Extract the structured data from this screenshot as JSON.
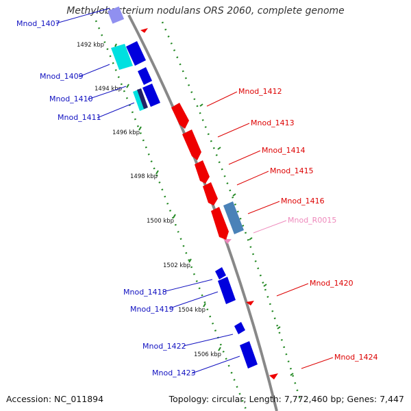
{
  "title": "Methylobacterium nodulans ORS 2060, complete genome",
  "footer": {
    "accession": "Accession: NC_011894",
    "stats": "Topology: circular; Length: 7,772,460 bp; Genes: 7,447"
  },
  "colors": {
    "minus_label": "#1010c0",
    "plus_label": "#dd0000",
    "rna_label": "#ee88bb",
    "axis": "#888888",
    "tick_mark": "#228822",
    "gene_blue": "#0000dd",
    "gene_red": "#ee0000",
    "gene_cyan": "#00e0e0",
    "gene_steel": "#4a82b8"
  },
  "ticks": [
    "1492 kbp",
    "1494 kbp",
    "1496 kbp",
    "1498 kbp",
    "1500 kbp",
    "1502 kbp",
    "1504 kbp",
    "1506 kbp"
  ],
  "left_labels": [
    "Mnod_1407",
    "Mnod_1409",
    "Mnod_1410",
    "Mnod_1411",
    "Mnod_1418",
    "Mnod_1419",
    "Mnod_1422",
    "Mnod_1423"
  ],
  "right_labels": [
    "Mnod_1412",
    "Mnod_1413",
    "Mnod_1414",
    "Mnod_1415",
    "Mnod_1416",
    "Mnod_R0015",
    "Mnod_1420",
    "Mnod_1424"
  ]
}
